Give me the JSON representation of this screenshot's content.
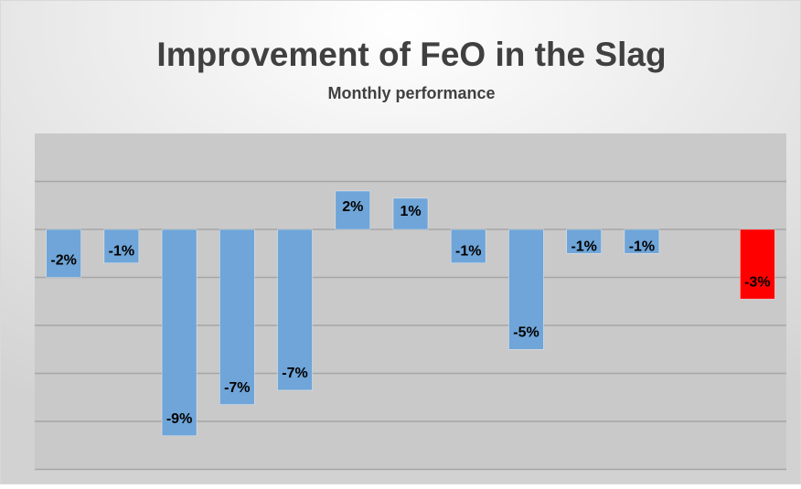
{
  "chart_data": {
    "type": "bar",
    "title": "Improvement of FeO in the Slag",
    "subtitle": "Monthly performance",
    "categories": [
      null,
      null,
      null,
      null,
      null,
      null,
      null,
      null,
      null,
      null,
      null,
      null,
      null
    ],
    "values": [
      -2.0,
      -1.4,
      -8.6,
      -7.3,
      -6.7,
      1.6,
      1.3,
      -1.4,
      -5.0,
      -1.0,
      -1.0,
      null,
      -2.9
    ],
    "value_labels": [
      "-2%",
      "-1%",
      "-9%",
      "-7%",
      "-7%",
      "2%",
      "1%",
      "-1%",
      "-5%",
      "-1%",
      "-1%",
      null,
      "-3%"
    ],
    "colors": [
      "#6fa5d8",
      "#6fa5d8",
      "#6fa5d8",
      "#6fa5d8",
      "#6fa5d8",
      "#6fa5d8",
      "#6fa5d8",
      "#6fa5d8",
      "#6fa5d8",
      "#6fa5d8",
      "#6fa5d8",
      "#6fa5d8",
      "#ff0000"
    ],
    "ylim": [
      -10,
      4
    ],
    "yticks": [
      -10,
      -8,
      -6,
      -4,
      -2,
      0,
      2
    ],
    "grid": true
  }
}
